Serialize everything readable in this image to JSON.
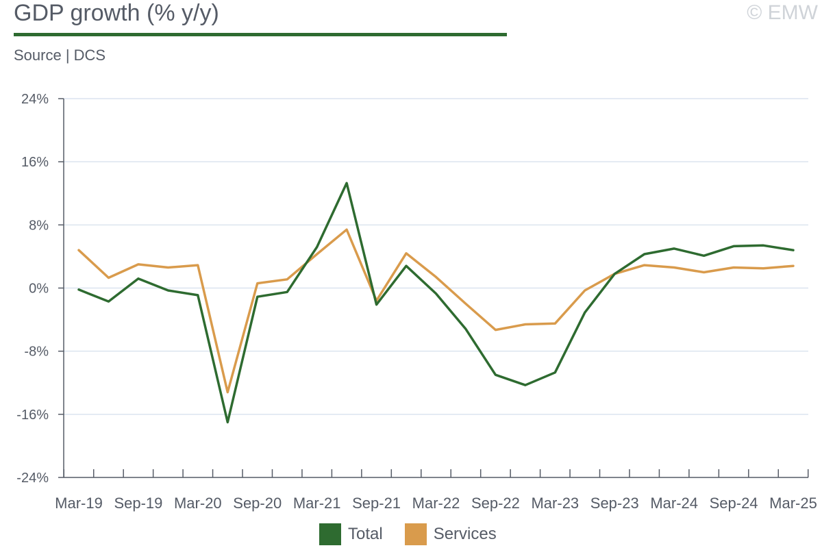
{
  "header": {
    "title": "GDP growth (% y/y)",
    "subtitle": "Source | DCS",
    "copyright": "© EMW"
  },
  "colors": {
    "total": "#2e6b30",
    "services": "#d99b4c",
    "axis": "#555b66",
    "grid": "#dbe4ef",
    "accent_rule": "#2e6b30"
  },
  "chart_data": {
    "type": "line",
    "title": "GDP growth (% y/y)",
    "xlabel": "",
    "ylabel": "",
    "ylim": [
      -24,
      24
    ],
    "yticks": [
      24,
      16,
      8,
      0,
      -8,
      -16,
      -24
    ],
    "ytick_labels": [
      "24%",
      "16%",
      "8%",
      "0%",
      "-8%",
      "-16%",
      "-24%"
    ],
    "grid": true,
    "legend": "bottom-center",
    "x": [
      "Mar-19",
      "Jun-19",
      "Sep-19",
      "Dec-19",
      "Mar-20",
      "Jun-20",
      "Sep-20",
      "Dec-20",
      "Mar-21",
      "Jun-21",
      "Sep-21",
      "Dec-21",
      "Mar-22",
      "Jun-22",
      "Sep-22",
      "Dec-22",
      "Mar-23",
      "Jun-23",
      "Sep-23",
      "Dec-23",
      "Mar-24",
      "Jun-24",
      "Sep-24",
      "Dec-24",
      "Mar-25"
    ],
    "x_tick_labels": [
      "Mar-19",
      "Sep-19",
      "Mar-20",
      "Sep-20",
      "Mar-21",
      "Sep-21",
      "Mar-22",
      "Sep-22",
      "Mar-23",
      "Sep-23",
      "Mar-24",
      "Sep-24",
      "Mar-25"
    ],
    "series": [
      {
        "name": "Total",
        "color": "#2e6b30",
        "values": [
          -0.2,
          -1.7,
          1.2,
          -0.3,
          -0.9,
          -17.0,
          -1.1,
          -0.5,
          5.2,
          13.3,
          -2.1,
          2.8,
          -0.7,
          -5.2,
          -11.0,
          -12.3,
          -10.7,
          -3.1,
          1.8,
          4.3,
          5.0,
          4.1,
          5.3,
          5.4,
          4.8
        ]
      },
      {
        "name": "Services",
        "color": "#d99b4c",
        "values": [
          4.8,
          1.3,
          3.0,
          2.6,
          2.9,
          -13.2,
          0.6,
          1.1,
          4.3,
          7.4,
          -1.6,
          4.4,
          1.4,
          -2.0,
          -5.3,
          -4.6,
          -4.5,
          -0.3,
          1.8,
          2.9,
          2.6,
          2.0,
          2.6,
          2.5,
          2.8
        ]
      }
    ]
  }
}
